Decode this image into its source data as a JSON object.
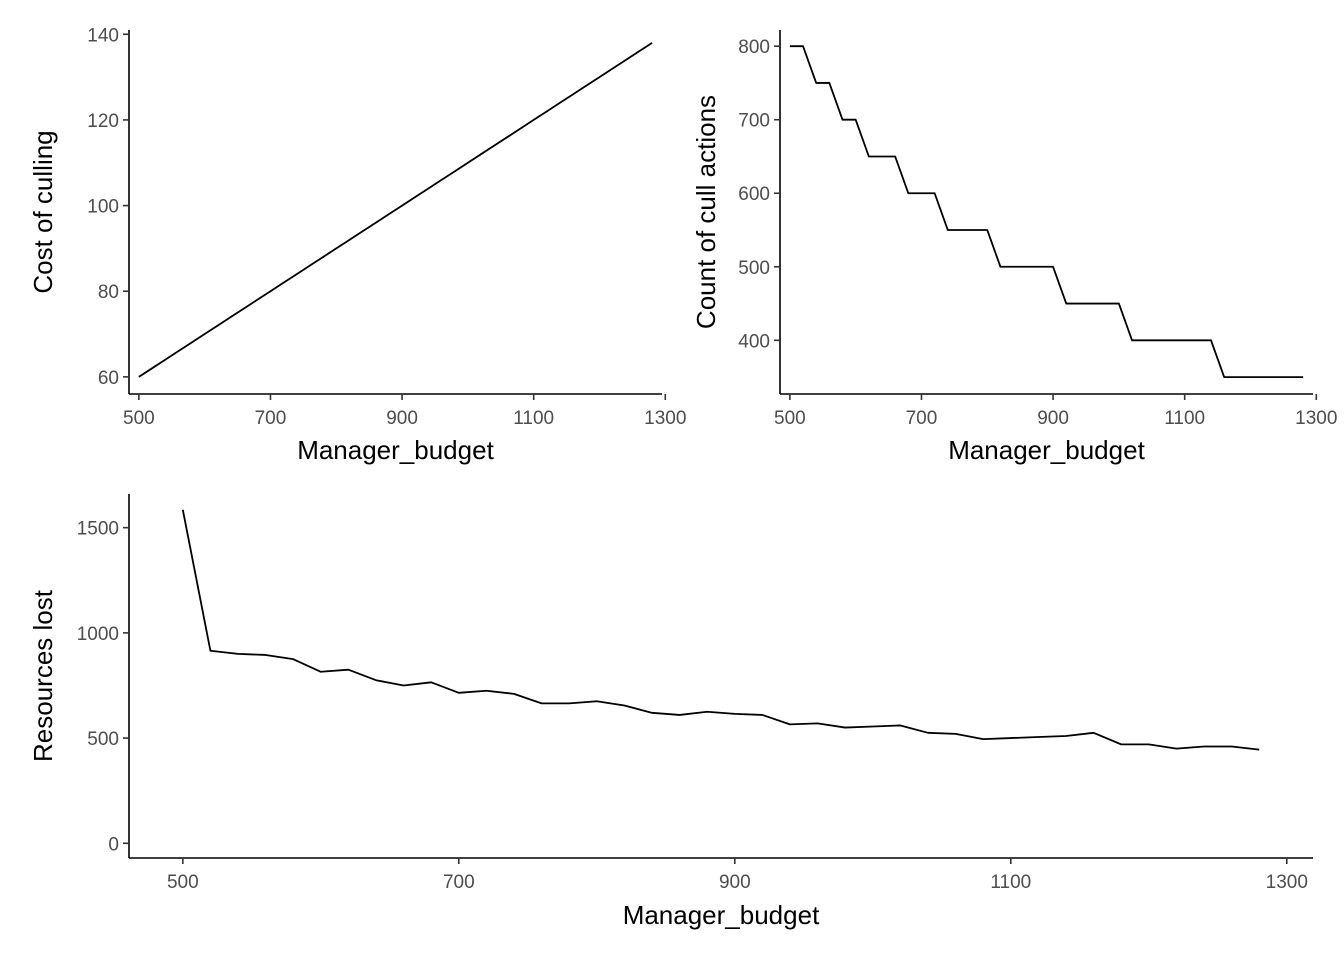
{
  "chart_data": [
    {
      "type": "line",
      "xlabel": "Manager_budget",
      "ylabel": "Cost of culling",
      "xlim": [
        485,
        1295
      ],
      "ylim": [
        56,
        141
      ],
      "xticks": [
        500,
        700,
        900,
        1100,
        1300
      ],
      "yticks": [
        60,
        80,
        100,
        120,
        140
      ],
      "grid": false,
      "x": [
        500,
        520,
        540,
        560,
        580,
        600,
        620,
        640,
        660,
        680,
        700,
        720,
        740,
        760,
        780,
        800,
        820,
        840,
        860,
        880,
        900,
        920,
        940,
        960,
        980,
        1000,
        1020,
        1040,
        1060,
        1080,
        1100,
        1120,
        1140,
        1160,
        1180,
        1200,
        1220,
        1240,
        1260,
        1280
      ],
      "values": [
        60,
        62,
        64,
        66,
        68,
        70,
        72,
        74,
        76,
        78,
        80,
        82,
        84,
        86,
        88,
        90,
        92,
        94,
        96,
        98,
        100,
        102,
        104,
        106,
        108,
        110,
        112,
        114,
        116,
        118,
        120,
        122,
        124,
        126,
        128,
        130,
        132,
        134,
        136,
        138
      ]
    },
    {
      "type": "line",
      "xlabel": "Manager_budget",
      "ylabel": "Count of cull actions",
      "xlim": [
        485,
        1295
      ],
      "ylim": [
        327,
        822
      ],
      "xticks": [
        500,
        700,
        900,
        1100,
        1300
      ],
      "yticks": [
        400,
        500,
        600,
        700,
        800
      ],
      "grid": false,
      "x": [
        500,
        520,
        540,
        560,
        580,
        600,
        620,
        640,
        660,
        680,
        700,
        720,
        740,
        760,
        780,
        800,
        820,
        840,
        860,
        880,
        900,
        920,
        940,
        960,
        980,
        1000,
        1020,
        1040,
        1060,
        1080,
        1100,
        1120,
        1140,
        1160,
        1180,
        1200,
        1220,
        1240,
        1260,
        1280
      ],
      "values": [
        800,
        800,
        750,
        750,
        700,
        700,
        650,
        650,
        650,
        600,
        600,
        600,
        550,
        550,
        550,
        550,
        500,
        500,
        500,
        500,
        500,
        450,
        450,
        450,
        450,
        450,
        400,
        400,
        400,
        400,
        400,
        400,
        400,
        350,
        350,
        350,
        350,
        350,
        350,
        350
      ]
    },
    {
      "type": "line",
      "xlabel": "Manager_budget",
      "ylabel": "Resources lost",
      "xlim": [
        461,
        1319
      ],
      "ylim": [
        -70,
        1660
      ],
      "xticks": [
        500,
        700,
        900,
        1100,
        1300
      ],
      "yticks": [
        0,
        500,
        1000,
        1500
      ],
      "grid": false,
      "x": [
        500,
        520,
        540,
        560,
        580,
        600,
        620,
        640,
        660,
        680,
        700,
        720,
        740,
        760,
        780,
        800,
        820,
        840,
        860,
        880,
        900,
        920,
        940,
        960,
        980,
        1000,
        1020,
        1040,
        1060,
        1080,
        1100,
        1120,
        1140,
        1160,
        1180,
        1200,
        1220,
        1240,
        1260,
        1280
      ],
      "values": [
        1585,
        915,
        900,
        895,
        875,
        815,
        825,
        775,
        750,
        765,
        715,
        725,
        710,
        665,
        665,
        675,
        655,
        620,
        610,
        625,
        615,
        610,
        565,
        570,
        550,
        555,
        560,
        525,
        520,
        495,
        500,
        505,
        510,
        525,
        470,
        470,
        450,
        460,
        460,
        445
      ]
    }
  ]
}
